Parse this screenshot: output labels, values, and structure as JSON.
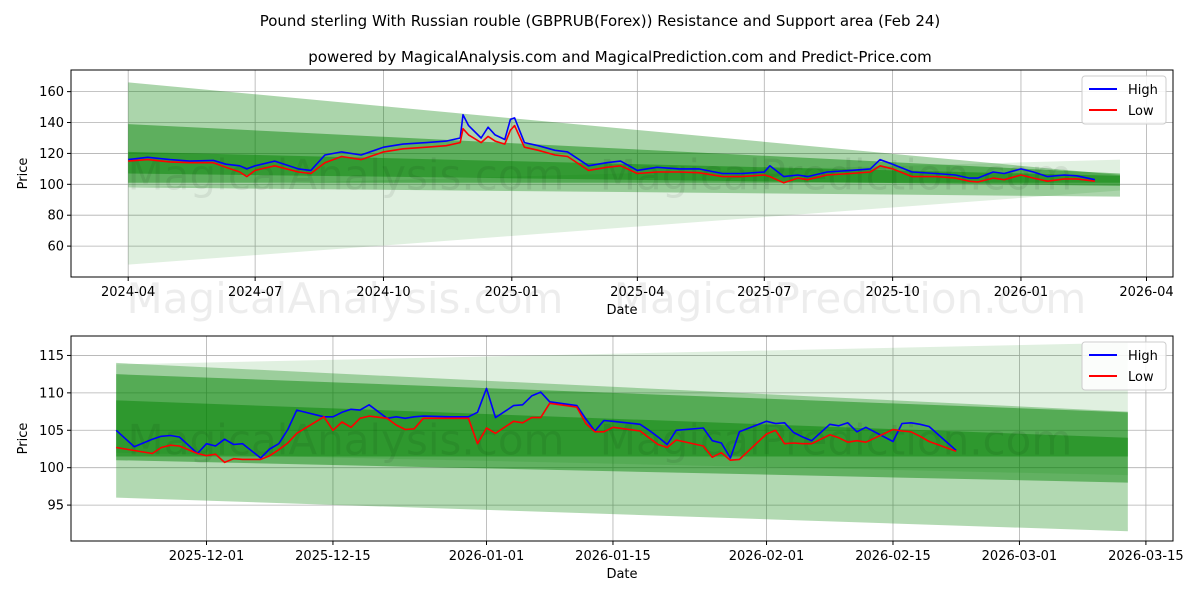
{
  "title": "Pound sterling With Russian rouble (GBPRUB(Forex)) Resistance and Support area (Feb 24)",
  "subtitle": "powered by MagicalAnalysis.com and MagicalPrediction.com and Predict-Price.com",
  "watermarks": [
    "MagicalAnalysis.com",
    "MagicalPrediction.com"
  ],
  "colors": {
    "high": "#0000ff",
    "low": "#ff0000",
    "band": "#008000"
  },
  "chart_data": [
    {
      "type": "line",
      "xlabel": "Date",
      "ylabel": "Price",
      "ylim": [
        40,
        174
      ],
      "xlim": [
        "2024-02-20",
        "2026-04-20"
      ],
      "yticks": [
        60,
        80,
        100,
        120,
        140,
        160
      ],
      "xticks": [
        "2024-04",
        "2024-07",
        "2024-10",
        "2025-01",
        "2025-04",
        "2025-07",
        "2025-10",
        "2026-01",
        "2026-04"
      ],
      "grid": true,
      "legend": {
        "position": "top-right",
        "entries": [
          "High",
          "Low"
        ]
      },
      "bands": [
        {
          "from": "2024-04-01",
          "to": "2026-03-13",
          "start": [
            98,
            48
          ],
          "end": [
            116,
            96
          ],
          "alpha": 0.12
        },
        {
          "from": "2024-04-01",
          "to": "2026-03-13",
          "start": [
            166,
            98
          ],
          "end": [
            106,
            92
          ],
          "alpha": 0.33
        },
        {
          "from": "2024-04-01",
          "to": "2026-03-13",
          "start": [
            139,
            107
          ],
          "end": [
            107,
            99
          ],
          "alpha": 0.45
        },
        {
          "from": "2024-04-01",
          "to": "2026-03-13",
          "start": [
            121,
            101
          ],
          "end": [
            105.5,
            101
          ],
          "alpha": 0.45
        }
      ],
      "x": [
        "2024-04-01",
        "2024-04-15",
        "2024-05-01",
        "2024-05-15",
        "2024-06-01",
        "2024-06-10",
        "2024-06-20",
        "2024-06-25",
        "2024-07-01",
        "2024-07-15",
        "2024-08-01",
        "2024-08-10",
        "2024-08-20",
        "2024-09-01",
        "2024-09-15",
        "2024-10-01",
        "2024-10-15",
        "2024-11-01",
        "2024-11-15",
        "2024-11-25",
        "2024-11-27",
        "2024-12-01",
        "2024-12-10",
        "2024-12-15",
        "2024-12-20",
        "2024-12-27",
        "2024-12-31",
        "2025-01-03",
        "2025-01-10",
        "2025-01-20",
        "2025-02-01",
        "2025-02-10",
        "2025-02-25",
        "2025-03-10",
        "2025-03-20",
        "2025-04-01",
        "2025-04-15",
        "2025-05-01",
        "2025-05-15",
        "2025-06-01",
        "2025-06-15",
        "2025-07-01",
        "2025-07-05",
        "2025-07-15",
        "2025-07-25",
        "2025-08-01",
        "2025-08-15",
        "2025-09-01",
        "2025-09-15",
        "2025-09-22",
        "2025-10-01",
        "2025-10-15",
        "2025-11-01",
        "2025-11-15",
        "2025-11-25",
        "2025-12-01",
        "2025-12-12",
        "2025-12-20",
        "2026-01-01",
        "2026-01-10",
        "2026-01-20",
        "2026-02-01",
        "2026-02-10",
        "2026-02-23"
      ],
      "series": [
        {
          "name": "High",
          "values": [
            116,
            117.5,
            116,
            115,
            115.5,
            113,
            112,
            110,
            112,
            115,
            110,
            109,
            119,
            121,
            119,
            124,
            126,
            127,
            128,
            130,
            145,
            138,
            130,
            137,
            132,
            129,
            142,
            143,
            127,
            125,
            122,
            121,
            112,
            114,
            115,
            109,
            111,
            110,
            110,
            107,
            107,
            108,
            112,
            105,
            106,
            105,
            108,
            109,
            110,
            116,
            113,
            108,
            107,
            106,
            104,
            104,
            108,
            107,
            110,
            108,
            105,
            106,
            105.5,
            103
          ]
        },
        {
          "name": "Low",
          "values": [
            115,
            116,
            114.5,
            114,
            114,
            111,
            108,
            105,
            109,
            112,
            108,
            107,
            114,
            118,
            116,
            121,
            123,
            124,
            125,
            127,
            136,
            132,
            127,
            131,
            128,
            126,
            135,
            138,
            124,
            122,
            119,
            118,
            109,
            111,
            112,
            107,
            108,
            108,
            107.5,
            105,
            105,
            106,
            105,
            101,
            104,
            103,
            106,
            107,
            108,
            112,
            110,
            105,
            105,
            104,
            102,
            101.5,
            104,
            103,
            106,
            104,
            102,
            103.5,
            103.5,
            102
          ]
        }
      ]
    },
    {
      "type": "line",
      "xlabel": "Date",
      "ylabel": "Price",
      "ylim": [
        90.2,
        117.6
      ],
      "xlim": [
        "2025-11-16",
        "2026-03-18"
      ],
      "yticks": [
        95,
        100,
        105,
        110,
        115
      ],
      "xticks": [
        "2025-12-01",
        "2025-12-15",
        "2026-01-01",
        "2026-01-15",
        "2026-02-01",
        "2026-02-15",
        "2026-03-01",
        "2026-03-15"
      ],
      "grid": true,
      "legend": {
        "position": "top-right",
        "entries": [
          "High",
          "Low"
        ]
      },
      "bands": [
        {
          "from": "2025-11-21",
          "to": "2026-03-13",
          "start": [
            113.8,
            102
          ],
          "end": [
            116.7,
            99
          ],
          "alpha": 0.12
        },
        {
          "from": "2025-11-21",
          "to": "2026-03-13",
          "start": [
            114,
            96
          ],
          "end": [
            107.5,
            91.5
          ],
          "alpha": 0.3
        },
        {
          "from": "2025-11-21",
          "to": "2026-03-13",
          "start": [
            112.5,
            101
          ],
          "end": [
            107.4,
            98
          ],
          "alpha": 0.45
        },
        {
          "from": "2025-11-21",
          "to": "2026-03-13",
          "start": [
            109,
            101.5
          ],
          "end": [
            104,
            101.5
          ],
          "alpha": 0.45
        }
      ],
      "x": [
        "2025-11-21",
        "2025-11-23",
        "2025-11-25",
        "2025-11-26",
        "2025-11-27",
        "2025-11-28",
        "2025-11-30",
        "2025-12-01",
        "2025-12-02",
        "2025-12-03",
        "2025-12-04",
        "2025-12-05",
        "2025-12-07",
        "2025-12-08",
        "2025-12-09",
        "2025-12-10",
        "2025-12-11",
        "2025-12-14",
        "2025-12-15",
        "2025-12-16",
        "2025-12-17",
        "2025-12-18",
        "2025-12-19",
        "2025-12-21",
        "2025-12-22",
        "2025-12-23",
        "2025-12-24",
        "2025-12-25",
        "2025-12-28",
        "2025-12-29",
        "2025-12-30",
        "2025-12-31",
        "2026-01-01",
        "2026-01-02",
        "2026-01-04",
        "2026-01-05",
        "2026-01-06",
        "2026-01-07",
        "2026-01-08",
        "2026-01-11",
        "2026-01-12",
        "2026-01-13",
        "2026-01-14",
        "2026-01-15",
        "2026-01-18",
        "2026-01-19",
        "2026-01-20",
        "2026-01-21",
        "2026-01-22",
        "2026-01-25",
        "2026-01-26",
        "2026-01-27",
        "2026-01-28",
        "2026-01-29",
        "2026-02-01",
        "2026-02-02",
        "2026-02-03",
        "2026-02-04",
        "2026-02-05",
        "2026-02-06",
        "2026-02-08",
        "2026-02-09",
        "2026-02-10",
        "2026-02-11",
        "2026-02-12",
        "2026-02-15",
        "2026-02-16",
        "2026-02-17",
        "2026-02-18",
        "2026-02-19",
        "2026-02-22"
      ],
      "series": [
        {
          "name": "High",
          "values": [
            105.0,
            102.8,
            103.8,
            104.2,
            104.3,
            104.1,
            101.9,
            103.2,
            102.9,
            103.8,
            103.1,
            103.2,
            101.3,
            102.5,
            103.2,
            105.1,
            107.7,
            106.8,
            106.8,
            107.4,
            107.8,
            107.7,
            108.4,
            106.6,
            106.8,
            106.6,
            106.8,
            106.9,
            106.8,
            106.8,
            106.8,
            107.4,
            110.6,
            106.7,
            108.3,
            108.4,
            109.6,
            110.1,
            108.8,
            108.3,
            106.5,
            104.9,
            106.3,
            106.2,
            105.8,
            105.0,
            104.1,
            103.1,
            105.0,
            105.3,
            103.6,
            103.3,
            101.3,
            104.8,
            106.2,
            105.9,
            106.0,
            104.7,
            104.1,
            103.6,
            105.8,
            105.6,
            106.0,
            104.8,
            105.4,
            103.5,
            105.9,
            106.0,
            105.8,
            105.5,
            102.3
          ]
        },
        {
          "name": "Low",
          "values": [
            102.7,
            102.3,
            101.9,
            102.7,
            103.0,
            102.9,
            101.9,
            101.6,
            101.8,
            100.7,
            101.2,
            101.1,
            101.1,
            101.6,
            102.4,
            103.3,
            104.6,
            106.8,
            105.0,
            106.1,
            105.4,
            106.6,
            106.9,
            106.6,
            105.7,
            105.1,
            105.2,
            106.6,
            106.6,
            106.6,
            106.6,
            103.2,
            105.3,
            104.6,
            106.2,
            106.0,
            106.7,
            106.7,
            108.6,
            108.1,
            105.9,
            104.8,
            104.8,
            105.4,
            104.9,
            104.0,
            103.1,
            102.7,
            103.7,
            102.9,
            101.4,
            102.0,
            101.0,
            101.1,
            104.5,
            105.0,
            103.2,
            103.3,
            103.2,
            103.2,
            104.4,
            104.0,
            103.4,
            103.6,
            103.4,
            105.1,
            104.9,
            104.8,
            104.2,
            103.5,
            102.2
          ]
        }
      ]
    }
  ]
}
